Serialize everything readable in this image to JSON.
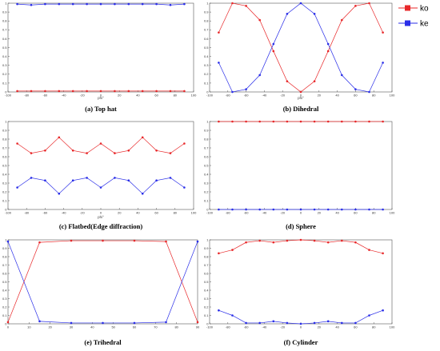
{
  "colors": {
    "ko": "#e8282a",
    "ke": "#2a2ee8",
    "axis": "#555555",
    "grid": "#000000"
  },
  "legend": {
    "placement": "top-right",
    "items": [
      {
        "name": "ko",
        "color": "#e8282a"
      },
      {
        "name": "ke",
        "color": "#2a2ee8"
      }
    ]
  },
  "chart_data": [
    {
      "type": "line",
      "caption": "(a) Top hat",
      "xlabel": "phi°",
      "xlim": [
        -100,
        100
      ],
      "ylim": [
        0,
        1
      ],
      "xticks": [
        -100,
        -80,
        -60,
        -40,
        -20,
        0,
        20,
        40,
        60,
        80,
        100
      ],
      "yticks": [
        0,
        0.1,
        0.2,
        0.3,
        0.4,
        0.5,
        0.6,
        0.7,
        0.8,
        0.9,
        1
      ],
      "x": [
        -90,
        -75,
        -60,
        -45,
        -30,
        -15,
        0,
        15,
        30,
        45,
        60,
        75,
        90
      ],
      "series": [
        {
          "name": "ko",
          "values": [
            0.01,
            0.01,
            0.01,
            0.01,
            0.01,
            0.01,
            0.01,
            0.01,
            0.01,
            0.01,
            0.01,
            0.01,
            0.01
          ]
        },
        {
          "name": "ke",
          "values": [
            0.99,
            0.98,
            0.99,
            0.99,
            0.99,
            0.99,
            0.99,
            0.99,
            0.99,
            0.99,
            0.99,
            0.98,
            0.99
          ]
        }
      ]
    },
    {
      "type": "line",
      "caption": "(b) Dihedral",
      "xlabel": "phi°",
      "xlim": [
        -100,
        100
      ],
      "ylim": [
        0,
        1
      ],
      "xticks": [
        -100,
        -80,
        -60,
        -40,
        -20,
        0,
        20,
        40,
        60,
        80,
        100
      ],
      "yticks": [
        0,
        0.1,
        0.2,
        0.3,
        0.4,
        0.5,
        0.6,
        0.7,
        0.8,
        0.9,
        1
      ],
      "x": [
        -90,
        -75,
        -60,
        -45,
        -30,
        -15,
        0,
        15,
        30,
        45,
        60,
        75,
        90
      ],
      "series": [
        {
          "name": "ko",
          "values": [
            0.67,
            1.0,
            0.97,
            0.81,
            0.46,
            0.12,
            0.0,
            0.12,
            0.46,
            0.81,
            0.97,
            1.0,
            0.67
          ]
        },
        {
          "name": "ke",
          "values": [
            0.33,
            0.0,
            0.03,
            0.19,
            0.54,
            0.88,
            1.0,
            0.88,
            0.54,
            0.19,
            0.03,
            0.0,
            0.33
          ]
        }
      ]
    },
    {
      "type": "line",
      "caption": "(c) Flatbed(Edge diffraction)",
      "xlabel": "phi°",
      "xlim": [
        -100,
        100
      ],
      "ylim": [
        0,
        1
      ],
      "xticks": [
        -100,
        -80,
        -60,
        -40,
        -20,
        0,
        20,
        40,
        60,
        80,
        100
      ],
      "yticks": [
        0,
        0.1,
        0.2,
        0.3,
        0.4,
        0.5,
        0.6,
        0.7,
        0.8,
        0.9,
        1
      ],
      "x": [
        -90,
        -75,
        -60,
        -45,
        -30,
        -15,
        0,
        15,
        30,
        45,
        60,
        75,
        90
      ],
      "series": [
        {
          "name": "ko",
          "values": [
            0.75,
            0.64,
            0.67,
            0.82,
            0.67,
            0.64,
            0.75,
            0.64,
            0.67,
            0.82,
            0.67,
            0.64,
            0.75
          ]
        },
        {
          "name": "ke",
          "values": [
            0.25,
            0.36,
            0.33,
            0.18,
            0.33,
            0.36,
            0.25,
            0.36,
            0.33,
            0.18,
            0.33,
            0.36,
            0.25
          ]
        }
      ]
    },
    {
      "type": "line",
      "caption": "(d) Sphere",
      "xlabel": "",
      "xlim": [
        -100,
        100
      ],
      "ylim": [
        0,
        1
      ],
      "xticks": [
        -100,
        -80,
        -60,
        -40,
        -20,
        0,
        20,
        40,
        60,
        80,
        100
      ],
      "yticks": [
        0,
        0.1,
        0.2,
        0.3,
        0.4,
        0.5,
        0.6,
        0.7,
        0.8,
        0.9,
        1
      ],
      "x": [
        -90,
        -75,
        -60,
        -45,
        -30,
        -15,
        0,
        15,
        30,
        45,
        60,
        75,
        90
      ],
      "series": [
        {
          "name": "ko",
          "values": [
            1,
            1,
            1,
            1,
            1,
            1,
            1,
            1,
            1,
            1,
            1,
            1,
            1
          ]
        },
        {
          "name": "ke",
          "values": [
            0,
            0,
            0,
            0,
            0,
            0,
            0,
            0,
            0,
            0,
            0,
            0,
            0
          ]
        }
      ]
    },
    {
      "type": "line",
      "caption": "(e) Trihedral",
      "xlabel": "",
      "xlim": [
        0,
        90
      ],
      "ylim": [
        0,
        1
      ],
      "xticks": [
        0,
        10,
        20,
        30,
        40,
        50,
        60,
        70,
        80,
        90
      ],
      "yticks": [
        0,
        0.1,
        0.2,
        0.3,
        0.4,
        0.5,
        0.6,
        0.7,
        0.8,
        0.9,
        1
      ],
      "x": [
        0,
        15,
        30,
        45,
        60,
        75,
        90
      ],
      "series": [
        {
          "name": "ko",
          "values": [
            0.02,
            0.97,
            0.99,
            0.99,
            0.99,
            0.98,
            0.02
          ]
        },
        {
          "name": "ke",
          "values": [
            0.98,
            0.03,
            0.01,
            0.01,
            0.01,
            0.02,
            0.98
          ]
        }
      ]
    },
    {
      "type": "line",
      "caption": "(f) Cylinder",
      "xlabel": "",
      "xlim": [
        -100,
        100
      ],
      "ylim": [
        0,
        1
      ],
      "xticks": [
        -100,
        -80,
        -60,
        -40,
        -20,
        0,
        20,
        40,
        60,
        80,
        100
      ],
      "yticks": [
        0,
        0.1,
        0.2,
        0.3,
        0.4,
        0.5,
        0.6,
        0.7,
        0.8,
        0.9,
        1
      ],
      "x": [
        -90,
        -75,
        -60,
        -45,
        -30,
        -15,
        0,
        15,
        30,
        45,
        60,
        75,
        90
      ],
      "series": [
        {
          "name": "ko",
          "values": [
            0.84,
            0.88,
            0.97,
            0.99,
            0.97,
            0.99,
            1.0,
            0.99,
            0.97,
            0.99,
            0.97,
            0.88,
            0.84
          ]
        },
        {
          "name": "ke",
          "values": [
            0.16,
            0.1,
            0.01,
            0.01,
            0.03,
            0.01,
            0.0,
            0.01,
            0.03,
            0.01,
            0.01,
            0.1,
            0.16
          ]
        }
      ]
    }
  ]
}
